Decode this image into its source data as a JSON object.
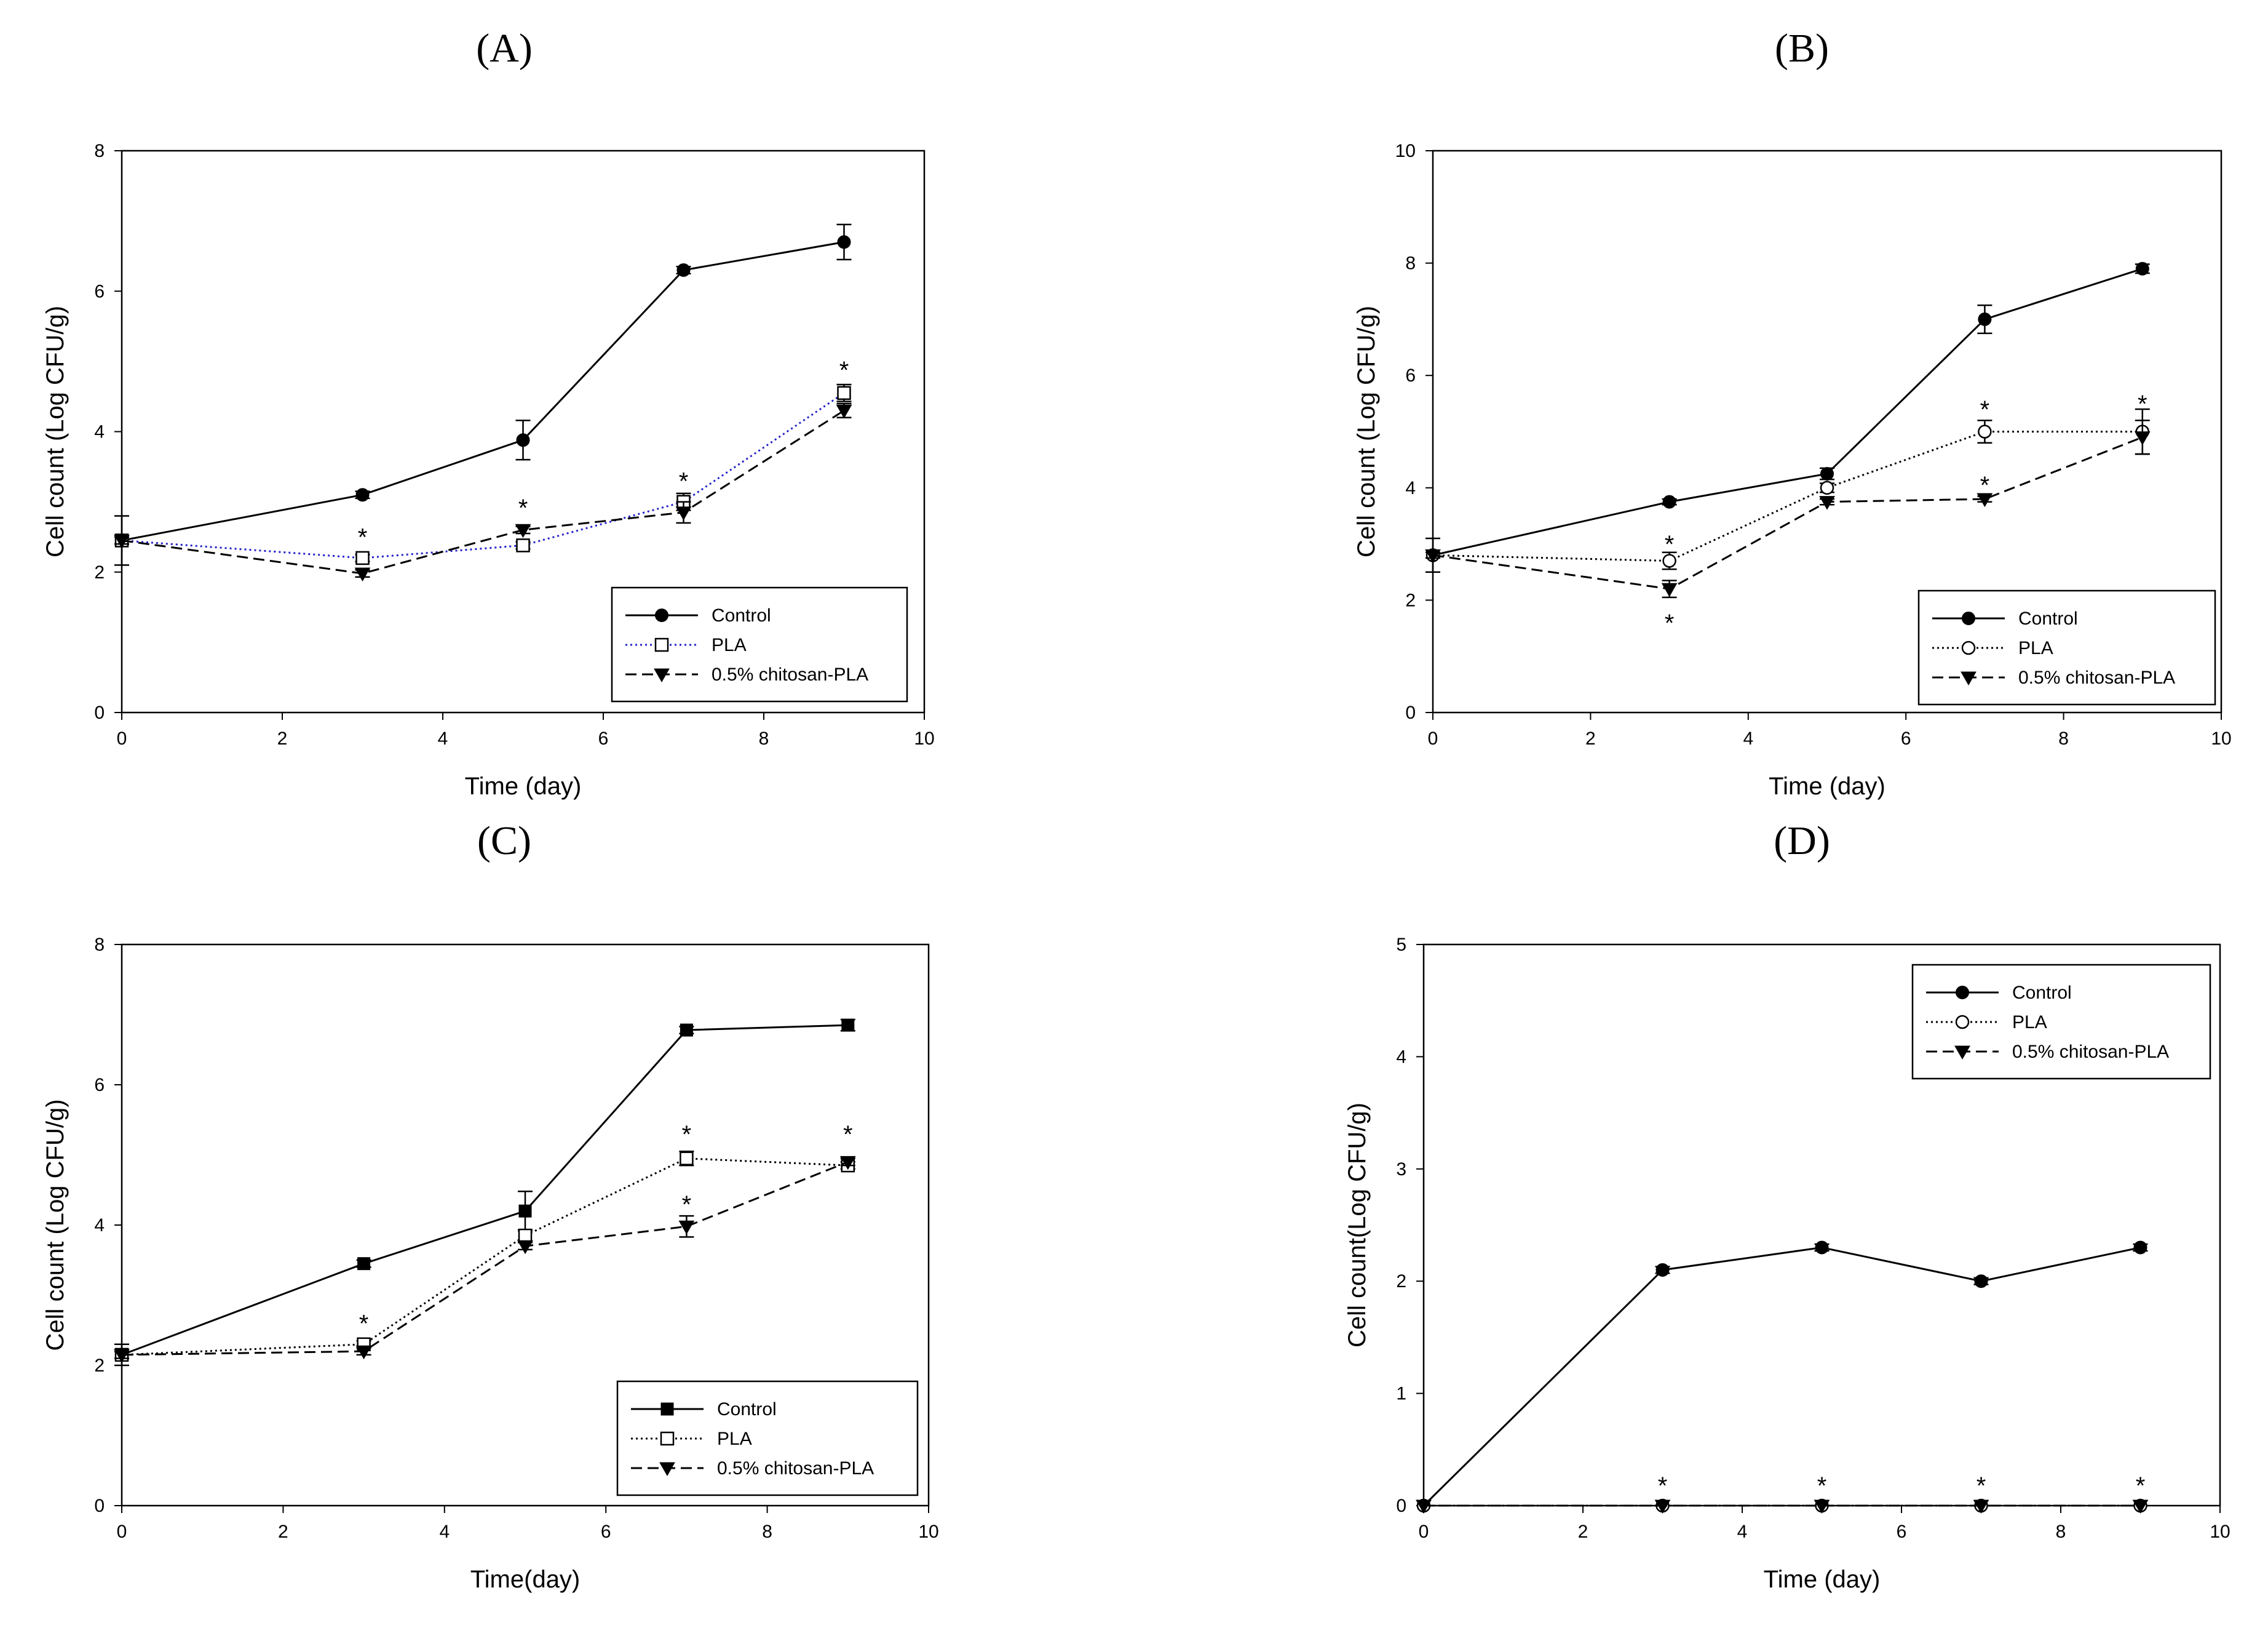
{
  "figure": {
    "colors": {
      "axis": "#000000",
      "control": "#000000",
      "pla": "#000000",
      "pla_a": "#2222cc",
      "chitosan": "#000000"
    }
  },
  "chart_data": [
    {
      "type": "line",
      "panel": "(A)",
      "xlabel": "Time (day)",
      "ylabel": "Cell count (Log CFU/g)",
      "xlim": [
        0,
        10
      ],
      "ylim": [
        0,
        8
      ],
      "xticks": [
        "0",
        "2",
        "4",
        "6",
        "8",
        "10"
      ],
      "yticks": [
        "0",
        "2",
        "4",
        "6",
        "8"
      ],
      "legend_position": "lower-right",
      "series": [
        {
          "name": "Control",
          "marker": "circle-filled",
          "line": "solid",
          "points": [
            [
              0,
              2.45
            ],
            [
              3,
              3.1
            ],
            [
              5,
              3.88
            ],
            [
              7,
              6.3
            ],
            [
              9,
              6.7
            ]
          ],
          "errors": [
            0.35,
            0.05,
            0.28,
            0.05,
            0.25
          ]
        },
        {
          "name": "PLA",
          "marker": "square-open",
          "line": "dotted-blue",
          "points": [
            [
              0,
              2.45
            ],
            [
              3,
              2.2
            ],
            [
              5,
              2.38
            ],
            [
              7,
              3.0
            ],
            [
              9,
              4.55
            ]
          ],
          "errors": [
            0.05,
            0.05,
            0.05,
            0.12,
            0.12
          ]
        },
        {
          "name": "0.5% chitosan-PLA",
          "marker": "triangle-down-filled",
          "line": "dashed",
          "points": [
            [
              0,
              2.45
            ],
            [
              3,
              1.98
            ],
            [
              5,
              2.6
            ],
            [
              7,
              2.85
            ],
            [
              9,
              4.3
            ]
          ],
          "errors": [
            0.05,
            0.05,
            0.05,
            0.15,
            0.1
          ]
        }
      ],
      "significance": [
        {
          "x": 3,
          "y": 2.5
        },
        {
          "x": 5,
          "y": 2.92
        },
        {
          "x": 7,
          "y": 3.3
        },
        {
          "x": 9,
          "y": 4.88
        }
      ],
      "significance_symbol": "*"
    },
    {
      "type": "line",
      "panel": "(B)",
      "xlabel": "Time (day)",
      "ylabel": "Cell count (Log CFU/g)",
      "xlim": [
        0,
        10
      ],
      "ylim": [
        0,
        10
      ],
      "xticks": [
        "0",
        "2",
        "4",
        "6",
        "8",
        "10"
      ],
      "yticks": [
        "0",
        "2",
        "4",
        "6",
        "8",
        "10"
      ],
      "legend_position": "lower-right",
      "series": [
        {
          "name": "Control",
          "marker": "circle-filled",
          "line": "solid",
          "points": [
            [
              0,
              2.8
            ],
            [
              3,
              3.75
            ],
            [
              5,
              4.25
            ],
            [
              7,
              7.0
            ],
            [
              9,
              7.9
            ]
          ],
          "errors": [
            0.3,
            0.05,
            0.1,
            0.25,
            0.08
          ]
        },
        {
          "name": "PLA",
          "marker": "circle-open",
          "line": "dotted",
          "points": [
            [
              0,
              2.8
            ],
            [
              3,
              2.7
            ],
            [
              5,
              4.0
            ],
            [
              7,
              5.0
            ],
            [
              9,
              5.0
            ]
          ],
          "errors": [
            0.05,
            0.15,
            0.08,
            0.2,
            0.4
          ]
        },
        {
          "name": "0.5% chitosan-PLA",
          "marker": "triangle-down-filled",
          "line": "dashed",
          "points": [
            [
              0,
              2.8
            ],
            [
              3,
              2.2
            ],
            [
              5,
              3.75
            ],
            [
              7,
              3.8
            ],
            [
              9,
              4.9
            ]
          ],
          "errors": [
            0.05,
            0.15,
            0.05,
            0.05,
            0.3
          ]
        }
      ],
      "significance": [
        {
          "x": 3,
          "y": 3.0
        },
        {
          "x": 3,
          "y": 1.6
        },
        {
          "x": 7,
          "y": 5.4
        },
        {
          "x": 7,
          "y": 4.05
        },
        {
          "x": 9,
          "y": 5.5
        }
      ],
      "significance_symbol": "*"
    },
    {
      "type": "line",
      "panel": "(C)",
      "xlabel": "Time(day)",
      "ylabel": "Cell count (Log CFU/g)",
      "xlim": [
        0,
        10
      ],
      "ylim": [
        0,
        8
      ],
      "xticks": [
        "0",
        "2",
        "4",
        "6",
        "8",
        "10"
      ],
      "yticks": [
        "0",
        "2",
        "4",
        "6",
        "8"
      ],
      "legend_position": "lower-right",
      "series": [
        {
          "name": "Control",
          "marker": "square-filled",
          "line": "solid",
          "points": [
            [
              0,
              2.15
            ],
            [
              3,
              3.45
            ],
            [
              5,
              4.2
            ],
            [
              7,
              6.78
            ],
            [
              9,
              6.85
            ]
          ],
          "errors": [
            0.15,
            0.05,
            0.28,
            0.05,
            0.08
          ]
        },
        {
          "name": "PLA",
          "marker": "square-open",
          "line": "dotted",
          "points": [
            [
              0,
              2.15
            ],
            [
              3,
              2.3
            ],
            [
              5,
              3.85
            ],
            [
              7,
              4.95
            ],
            [
              9,
              4.85
            ]
          ],
          "errors": [
            0.05,
            0.05,
            0.08,
            0.1,
            0.05
          ]
        },
        {
          "name": "0.5% chitosan-PLA",
          "marker": "triangle-down-filled",
          "line": "dashed",
          "points": [
            [
              0,
              2.15
            ],
            [
              3,
              2.2
            ],
            [
              5,
              3.7
            ],
            [
              7,
              3.98
            ],
            [
              9,
              4.9
            ]
          ],
          "errors": [
            0.05,
            0.05,
            0.05,
            0.15,
            0.05
          ]
        }
      ],
      "significance": [
        {
          "x": 3,
          "y": 2.6
        },
        {
          "x": 7,
          "y": 5.3
        },
        {
          "x": 7,
          "y": 4.3
        },
        {
          "x": 9,
          "y": 5.3
        }
      ],
      "significance_symbol": "*"
    },
    {
      "type": "line",
      "panel": "(D)",
      "xlabel": "Time (day)",
      "ylabel": "Cell count(Log CFU/g)",
      "xlim": [
        0,
        10
      ],
      "ylim": [
        0,
        5
      ],
      "xticks": [
        "0",
        "2",
        "4",
        "6",
        "8",
        "10"
      ],
      "yticks": [
        "0",
        "1",
        "2",
        "3",
        "4",
        "5"
      ],
      "legend_position": "upper-right",
      "series": [
        {
          "name": "Control",
          "marker": "circle-filled",
          "line": "solid",
          "points": [
            [
              0,
              0
            ],
            [
              3,
              2.1
            ],
            [
              5,
              2.3
            ],
            [
              7,
              2.0
            ],
            [
              9,
              2.3
            ]
          ],
          "errors": [
            0,
            0.03,
            0.03,
            0.03,
            0.03
          ]
        },
        {
          "name": "PLA",
          "marker": "circle-open",
          "line": "dotted",
          "points": [
            [
              0,
              0
            ],
            [
              3,
              0
            ],
            [
              5,
              0
            ],
            [
              7,
              0
            ],
            [
              9,
              0
            ]
          ],
          "errors": [
            0,
            0,
            0,
            0,
            0
          ]
        },
        {
          "name": "0.5% chitosan-PLA",
          "marker": "triangle-down-filled",
          "line": "dashed",
          "points": [
            [
              0,
              0
            ],
            [
              3,
              0
            ],
            [
              5,
              0
            ],
            [
              7,
              0
            ],
            [
              9,
              0
            ]
          ],
          "errors": [
            0,
            0,
            0,
            0,
            0
          ]
        }
      ],
      "significance": [
        {
          "x": 3,
          "y": 0.18
        },
        {
          "x": 5,
          "y": 0.18
        },
        {
          "x": 7,
          "y": 0.18
        },
        {
          "x": 9,
          "y": 0.18
        }
      ],
      "significance_symbol": "*"
    }
  ]
}
